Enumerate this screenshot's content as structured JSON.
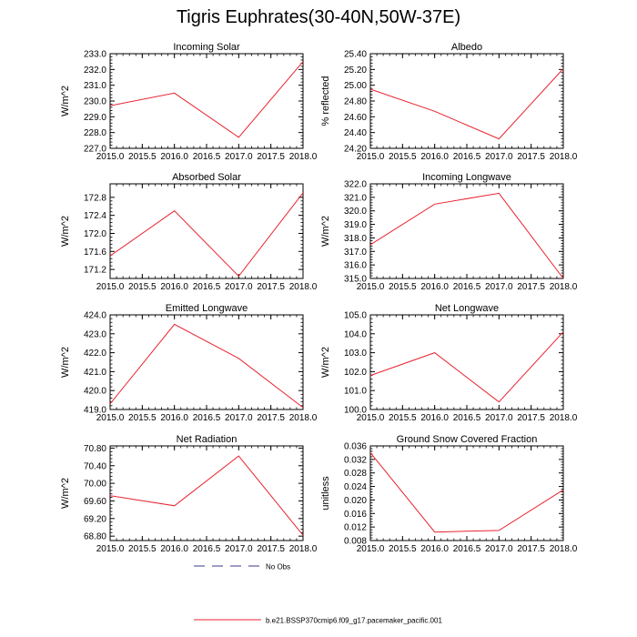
{
  "page": {
    "title": "Tigris Euphrates(30-40N,50W-37E)"
  },
  "legend": {
    "items": [
      {
        "label": "No Obs",
        "color": "#3a3a8c",
        "style": "dashed"
      },
      {
        "label": "b.e21.BSSP370cmip6.f09_g17.pacemaker_pacific.001",
        "color": "#e8232f",
        "style": "solid"
      }
    ]
  },
  "chart_data": [
    {
      "type": "line",
      "title": "Incoming Solar",
      "ylabel": "W/m^2",
      "x": [
        2015,
        2016,
        2017,
        2018
      ],
      "series": [
        {
          "name": "b.e21.BSSP370cmip6.f09_g17.pacemaker_pacific.001",
          "values": [
            229.7,
            230.5,
            227.7,
            232.5
          ]
        }
      ],
      "xlim": [
        2015,
        2018
      ],
      "ylim": [
        227,
        233
      ],
      "xticks": [
        "2015.0",
        "2015.5",
        "2016.0",
        "2016.5",
        "2017.0",
        "2017.5",
        "2018.0"
      ],
      "yticks": [
        "227.0",
        "228.0",
        "229.0",
        "230.0",
        "231.0",
        "232.0",
        "233.0"
      ],
      "ytick_values": [
        227,
        228,
        229,
        230,
        231,
        232,
        233
      ]
    },
    {
      "type": "line",
      "title": "Albedo",
      "ylabel": "% reflected",
      "x": [
        2015,
        2016,
        2017,
        2018
      ],
      "series": [
        {
          "name": "b.e21.BSSP370cmip6.f09_g17.pacemaker_pacific.001",
          "values": [
            24.95,
            24.67,
            24.32,
            25.21
          ]
        }
      ],
      "xlim": [
        2015,
        2018
      ],
      "ylim": [
        24.2,
        25.4
      ],
      "xticks": [
        "2015.0",
        "2015.5",
        "2016.0",
        "2016.5",
        "2017.0",
        "2017.5",
        "2018.0"
      ],
      "yticks": [
        "24.20",
        "24.40",
        "24.60",
        "24.80",
        "25.00",
        "25.20",
        "25.40"
      ],
      "ytick_values": [
        24.2,
        24.4,
        24.6,
        24.8,
        25.0,
        25.2,
        25.4
      ]
    },
    {
      "type": "line",
      "title": "Absorbed Solar",
      "ylabel": "W/m^2",
      "x": [
        2015,
        2016,
        2017,
        2018
      ],
      "series": [
        {
          "name": "b.e21.BSSP370cmip6.f09_g17.pacemaker_pacific.001",
          "values": [
            171.5,
            172.5,
            171.05,
            172.9
          ]
        }
      ],
      "xlim": [
        2015,
        2018
      ],
      "ylim": [
        171.0,
        173.1
      ],
      "xticks": [
        "2015.0",
        "2015.5",
        "2016.0",
        "2016.5",
        "2017.0",
        "2017.5",
        "2018.0"
      ],
      "yticks": [
        "171.2",
        "171.6",
        "172.0",
        "172.4",
        "172.8"
      ],
      "ytick_values": [
        171.2,
        171.6,
        172.0,
        172.4,
        172.8
      ]
    },
    {
      "type": "line",
      "title": "Incoming Longwave",
      "ylabel": "W/m^2",
      "x": [
        2015,
        2016,
        2017,
        2018
      ],
      "series": [
        {
          "name": "b.e21.BSSP370cmip6.f09_g17.pacemaker_pacific.001",
          "values": [
            317.5,
            320.5,
            321.3,
            315.0
          ]
        }
      ],
      "xlim": [
        2015,
        2018
      ],
      "ylim": [
        315,
        322
      ],
      "xticks": [
        "2015.0",
        "2015.5",
        "2016.0",
        "2016.5",
        "2017.0",
        "2017.5",
        "2018.0"
      ],
      "yticks": [
        "315.0",
        "316.0",
        "317.0",
        "318.0",
        "319.0",
        "320.0",
        "321.0",
        "322.0"
      ],
      "ytick_values": [
        315,
        316,
        317,
        318,
        319,
        320,
        321,
        322
      ]
    },
    {
      "type": "line",
      "title": "Emitted Longwave",
      "ylabel": "W/m^2",
      "x": [
        2015,
        2016,
        2017,
        2018
      ],
      "series": [
        {
          "name": "b.e21.BSSP370cmip6.f09_g17.pacemaker_pacific.001",
          "values": [
            419.3,
            423.5,
            421.7,
            419.1
          ]
        }
      ],
      "xlim": [
        2015,
        2018
      ],
      "ylim": [
        419,
        424
      ],
      "xticks": [
        "2015.0",
        "2015.5",
        "2016.0",
        "2016.5",
        "2017.0",
        "2017.5",
        "2018.0"
      ],
      "yticks": [
        "419.0",
        "420.0",
        "421.0",
        "422.0",
        "423.0",
        "424.0"
      ],
      "ytick_values": [
        419,
        420,
        421,
        422,
        423,
        424
      ]
    },
    {
      "type": "line",
      "title": "Net Longwave",
      "ylabel": "W/m^2",
      "x": [
        2015,
        2016,
        2017,
        2018
      ],
      "series": [
        {
          "name": "b.e21.BSSP370cmip6.f09_g17.pacemaker_pacific.001",
          "values": [
            101.8,
            103.0,
            100.4,
            104.1
          ]
        }
      ],
      "xlim": [
        2015,
        2018
      ],
      "ylim": [
        100,
        105
      ],
      "xticks": [
        "2015.0",
        "2015.5",
        "2016.0",
        "2016.5",
        "2017.0",
        "2017.5",
        "2018.0"
      ],
      "yticks": [
        "100.0",
        "101.0",
        "102.0",
        "103.0",
        "104.0",
        "105.0"
      ],
      "ytick_values": [
        100,
        101,
        102,
        103,
        104,
        105
      ]
    },
    {
      "type": "line",
      "title": "Net Radiation",
      "ylabel": "W/m^2",
      "x": [
        2015,
        2016,
        2017,
        2018
      ],
      "series": [
        {
          "name": "b.e21.BSSP370cmip6.f09_g17.pacemaker_pacific.001",
          "values": [
            69.72,
            69.49,
            70.62,
            68.82
          ]
        }
      ],
      "xlim": [
        2015,
        2018
      ],
      "ylim": [
        68.7,
        70.85
      ],
      "xticks": [
        "2015.0",
        "2015.5",
        "2016.0",
        "2016.5",
        "2017.0",
        "2017.5",
        "2018.0"
      ],
      "yticks": [
        "68.80",
        "69.20",
        "69.60",
        "70.00",
        "70.40",
        "70.80"
      ],
      "ytick_values": [
        68.8,
        69.2,
        69.6,
        70.0,
        70.4,
        70.8
      ]
    },
    {
      "type": "line",
      "title": "Ground Snow Covered Fraction",
      "ylabel": "unitless",
      "x": [
        2015,
        2016,
        2017,
        2018
      ],
      "series": [
        {
          "name": "b.e21.BSSP370cmip6.f09_g17.pacemaker_pacific.001",
          "values": [
            0.034,
            0.0105,
            0.011,
            0.023
          ]
        }
      ],
      "xlim": [
        2015,
        2018
      ],
      "ylim": [
        0.008,
        0.036
      ],
      "xticks": [
        "2015.0",
        "2015.5",
        "2016.0",
        "2016.5",
        "2017.0",
        "2017.5",
        "2018.0"
      ],
      "yticks": [
        "0.008",
        "0.012",
        "0.016",
        "0.020",
        "0.024",
        "0.028",
        "0.032",
        "0.036"
      ],
      "ytick_values": [
        0.008,
        0.012,
        0.016,
        0.02,
        0.024,
        0.028,
        0.032,
        0.036
      ]
    }
  ]
}
